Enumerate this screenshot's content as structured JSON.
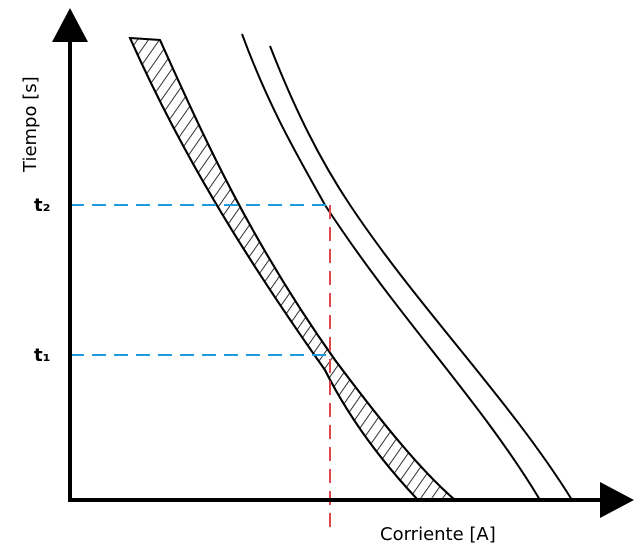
{
  "diagram": {
    "x_axis_label": "Corriente [A]",
    "y_axis_label": "Tiempo [s]",
    "t1_label": "t₁",
    "t2_label": "t₂",
    "colors": {
      "axis": "#000000",
      "curve": "#000000",
      "time_guide": "#1e9be0",
      "current_marker": "#e0474c",
      "background": "#ffffff"
    }
  }
}
